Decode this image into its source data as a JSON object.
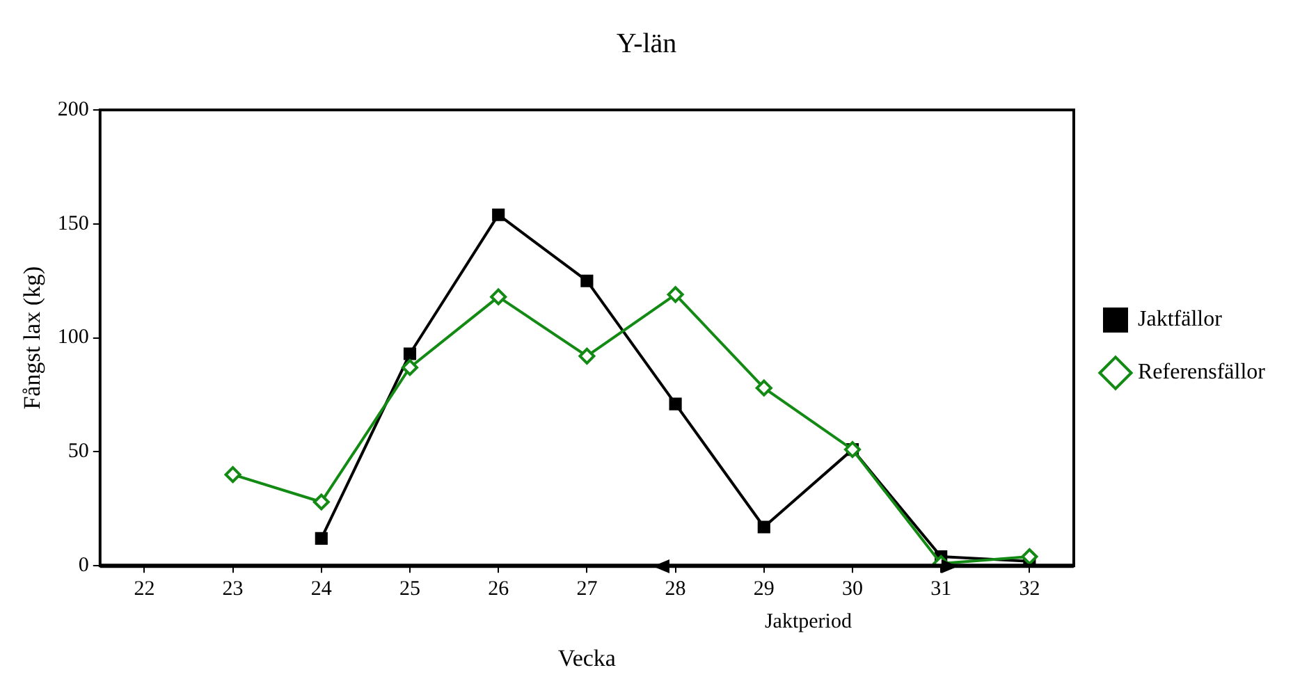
{
  "chart_data": {
    "type": "line",
    "title": "Y-län",
    "xlabel": "Vecka",
    "ylabel": "Fångst lax (kg)",
    "categories": [
      "22",
      "23",
      "24",
      "25",
      "26",
      "27",
      "28",
      "29",
      "30",
      "31",
      "32"
    ],
    "series": [
      {
        "name": "Jaktfällor",
        "color": "#000000",
        "marker": "square",
        "values": [
          null,
          null,
          12,
          93,
          154,
          125,
          71,
          17,
          51,
          4,
          2
        ]
      },
      {
        "name": "Referensfällor",
        "color": "#138a13",
        "marker": "diamond",
        "values": [
          null,
          40,
          28,
          87,
          118,
          92,
          119,
          78,
          51,
          1,
          4
        ]
      }
    ],
    "ylim": [
      0,
      200
    ],
    "yticks": [
      0,
      50,
      100,
      150,
      200
    ],
    "grid": false,
    "legend": "right",
    "line_style": "solid",
    "annotations": [
      "Jaktperiod"
    ]
  }
}
